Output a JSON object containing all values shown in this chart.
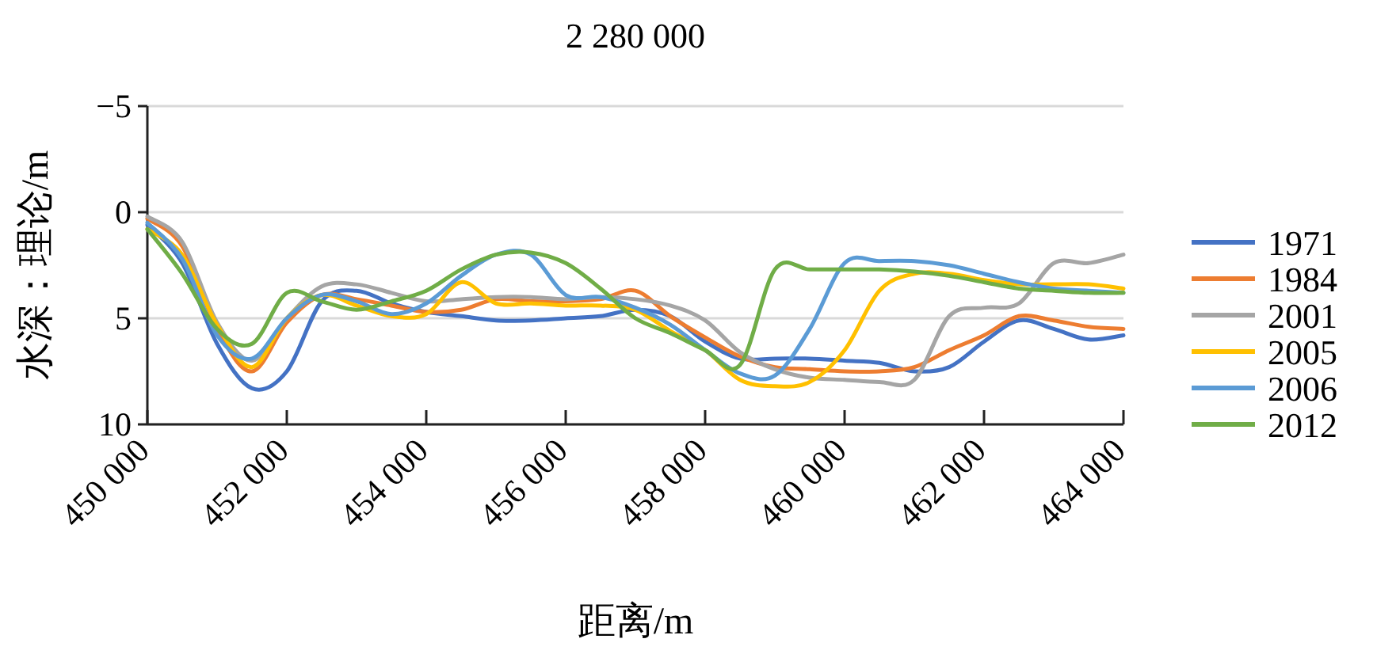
{
  "chart_data": {
    "type": "line",
    "title": "2 280 000",
    "xlabel": "距离/m",
    "ylabel": "水深：理论/m",
    "x": [
      450000,
      450500,
      451000,
      451500,
      452000,
      452500,
      453000,
      453500,
      454000,
      454500,
      455000,
      455500,
      456000,
      456500,
      457000,
      457500,
      458000,
      458500,
      459000,
      459500,
      460000,
      460500,
      461000,
      461500,
      462000,
      462500,
      463000,
      463500,
      464000
    ],
    "series": [
      {
        "name": "1971",
        "color": "#4472c4",
        "values": [
          0.6,
          2.4,
          6.2,
          8.3,
          7.5,
          4.2,
          3.7,
          4.3,
          4.7,
          4.9,
          5.1,
          5.1,
          5.0,
          4.9,
          4.6,
          4.9,
          6.1,
          6.9,
          6.9,
          6.9,
          7.0,
          7.1,
          7.5,
          7.3,
          6.1,
          5.1,
          5.5,
          6.0,
          5.8
        ]
      },
      {
        "name": "1984",
        "color": "#ed7d31",
        "values": [
          0.3,
          1.6,
          5.5,
          7.5,
          5.2,
          3.9,
          4.1,
          4.4,
          4.7,
          4.6,
          4.1,
          4.2,
          4.2,
          4.1,
          3.7,
          4.9,
          5.9,
          6.8,
          7.3,
          7.4,
          7.5,
          7.5,
          7.3,
          6.5,
          5.8,
          4.9,
          5.1,
          5.4,
          5.5
        ]
      },
      {
        "name": "2001",
        "color": "#a5a5a5",
        "values": [
          0.2,
          1.4,
          5.2,
          7.0,
          5.0,
          3.5,
          3.4,
          3.8,
          4.2,
          4.1,
          4.0,
          4.0,
          4.1,
          4.0,
          4.1,
          4.4,
          5.1,
          6.6,
          7.4,
          7.8,
          7.9,
          8.0,
          7.9,
          4.9,
          4.5,
          4.3,
          2.4,
          2.4,
          2.0
        ]
      },
      {
        "name": "2005",
        "color": "#ffc000",
        "values": [
          0.8,
          2.0,
          5.3,
          7.3,
          5.0,
          3.9,
          4.4,
          4.9,
          4.8,
          3.3,
          4.3,
          4.3,
          4.4,
          4.4,
          4.6,
          5.6,
          6.5,
          7.9,
          8.2,
          8.0,
          6.5,
          3.7,
          2.9,
          2.9,
          3.2,
          3.4,
          3.4,
          3.4,
          3.6
        ]
      },
      {
        "name": "2006",
        "color": "#5b9bd5",
        "values": [
          0.5,
          2.2,
          5.8,
          6.9,
          5.0,
          3.9,
          4.2,
          4.8,
          4.3,
          3.0,
          2.0,
          2.0,
          3.9,
          4.0,
          4.5,
          5.3,
          6.5,
          7.6,
          7.7,
          5.5,
          2.4,
          2.3,
          2.3,
          2.5,
          2.9,
          3.3,
          3.6,
          3.7,
          3.8
        ]
      },
      {
        "name": "2012",
        "color": "#70ad47",
        "values": [
          0.8,
          2.9,
          5.5,
          6.2,
          3.8,
          4.2,
          4.6,
          4.2,
          3.7,
          2.7,
          2.0,
          1.9,
          2.4,
          3.6,
          5.0,
          5.7,
          6.5,
          7.2,
          2.7,
          2.7,
          2.7,
          2.7,
          2.8,
          3.0,
          3.3,
          3.6,
          3.7,
          3.8,
          3.8
        ]
      }
    ],
    "xlim": [
      450000,
      464000
    ],
    "xticks": [
      {
        "value": 450000,
        "label": "450 000"
      },
      {
        "value": 452000,
        "label": "452 000"
      },
      {
        "value": 454000,
        "label": "454 000"
      },
      {
        "value": 456000,
        "label": "456 000"
      },
      {
        "value": 458000,
        "label": "458 000"
      },
      {
        "value": 460000,
        "label": "460 000"
      },
      {
        "value": 462000,
        "label": "462 000"
      },
      {
        "value": 464000,
        "label": "464 000"
      }
    ],
    "ylim": [
      10,
      -5
    ],
    "yticks": [
      {
        "value": -5,
        "label": "−5"
      },
      0,
      5,
      10
    ],
    "grid": "y",
    "legend": "right",
    "marker": "none",
    "line_style": "solid"
  }
}
